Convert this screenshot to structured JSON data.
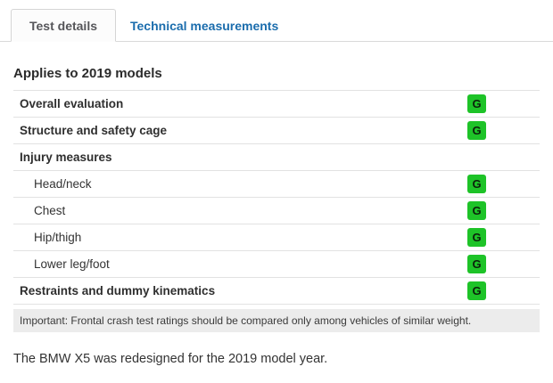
{
  "tabs": [
    {
      "label": "Test details",
      "active": true
    },
    {
      "label": "Technical measurements",
      "active": false
    }
  ],
  "heading": "Applies to 2019 models",
  "table": {
    "rows": [
      {
        "label": "Overall evaluation",
        "rating": "G",
        "bold": true,
        "indent": false
      },
      {
        "label": "Structure and safety cage",
        "rating": "G",
        "bold": true,
        "indent": false
      },
      {
        "label": "Injury measures",
        "rating": null,
        "bold": true,
        "indent": false
      },
      {
        "label": "Head/neck",
        "rating": "G",
        "bold": false,
        "indent": true
      },
      {
        "label": "Chest",
        "rating": "G",
        "bold": false,
        "indent": true
      },
      {
        "label": "Hip/thigh",
        "rating": "G",
        "bold": false,
        "indent": true
      },
      {
        "label": "Lower leg/foot",
        "rating": "G",
        "bold": false,
        "indent": true
      },
      {
        "label": "Restraints and dummy kinematics",
        "rating": "G",
        "bold": true,
        "indent": false
      }
    ],
    "note": "Important: Frontal crash test ratings should be compared only among vehicles of similar weight."
  },
  "footer_text": "The BMW X5 was redesigned for the 2019 model year.",
  "colors": {
    "rating_good_green": "#1ec328",
    "link_blue": "#1b6dad",
    "row_border": "#e2e2e2",
    "note_background": "#ececec"
  }
}
